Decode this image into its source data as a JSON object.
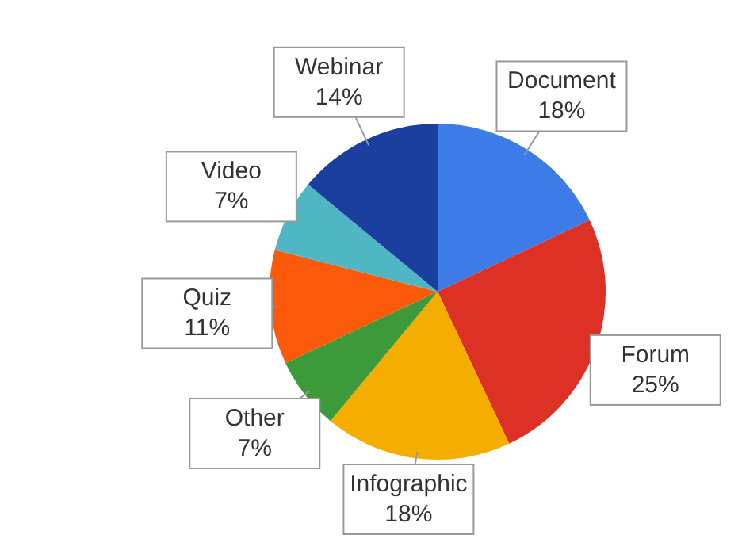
{
  "chart_data": {
    "type": "pie",
    "categories": [
      "Document",
      "Forum",
      "Infographic",
      "Other",
      "Quiz",
      "Video",
      "Webinar"
    ],
    "values": [
      18,
      25,
      18,
      7,
      11,
      7,
      14
    ],
    "value_labels": [
      "18%",
      "25%",
      "18%",
      "7%",
      "11%",
      "7%",
      "14%"
    ],
    "colors": [
      "#3d7be8",
      "#de3126",
      "#f5ad00",
      "#3c9a3a",
      "#fb5a0b",
      "#4fb7c3",
      "#1b3f9f"
    ],
    "legend": false
  }
}
